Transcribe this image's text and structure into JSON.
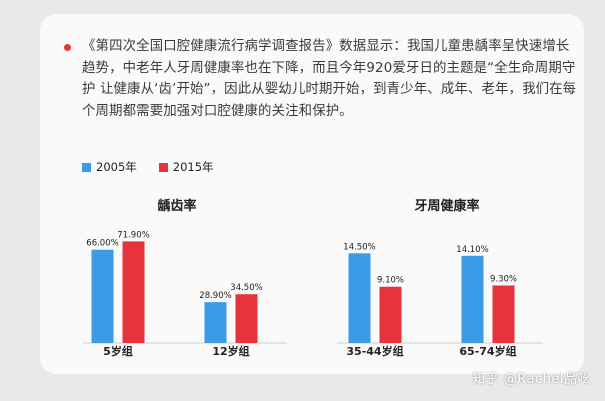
{
  "paragraph": "《第四次全国口腔健康流行病学调查报告》数据显示：我国儿童患龋率呈快速增长趋势，中老年人牙周健康率也在下降，而且今年920爱牙日的主题是“全生命周期守护  让健康从‘齿’开始”，因此从婴幼儿时期开始，到青少年、成年、老年，我们在每个周期都需要加强对口腔健康的关注和保护。",
  "legend": [
    {
      "label": "2005年",
      "color": "#3a9be8"
    },
    {
      "label": "2015年",
      "color": "#e7333b"
    }
  ],
  "watermark": "知乎 @Rachel品吆",
  "chart_data": [
    {
      "type": "bar",
      "title": "龋齿率",
      "categories": [
        "5岁组",
        "12岁组"
      ],
      "series": [
        {
          "name": "2005年",
          "values": [
            66.0,
            28.9
          ],
          "labels": [
            "66.00%",
            "28.90%"
          ]
        },
        {
          "name": "2015年",
          "values": [
            71.9,
            34.5
          ],
          "labels": [
            "71.90%",
            "34.50%"
          ]
        }
      ],
      "ylim": [
        0,
        75
      ]
    },
    {
      "type": "bar",
      "title": "牙周健康率",
      "categories": [
        "35-44岁组",
        "65-74岁组"
      ],
      "series": [
        {
          "name": "2005年",
          "values": [
            14.5,
            14.1
          ],
          "labels": [
            "14.50%",
            "14.10%"
          ]
        },
        {
          "name": "2015年",
          "values": [
            9.1,
            9.3
          ],
          "labels": [
            "9.10%",
            "9.30%"
          ]
        }
      ],
      "ylim": [
        0,
        15.2
      ]
    }
  ]
}
